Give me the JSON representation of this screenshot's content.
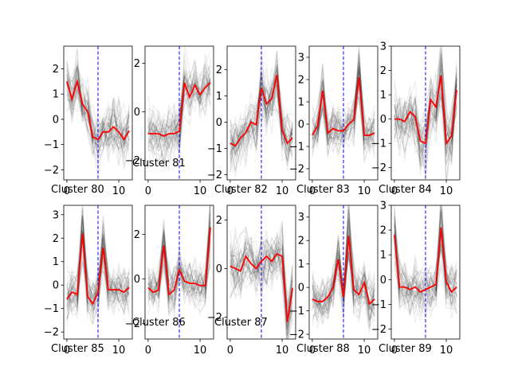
{
  "chart_data": [
    {
      "type": "line",
      "label": "Cluster 80",
      "ylim": [
        -2.4,
        2.9
      ],
      "yticks": [
        -2,
        -1,
        0,
        1,
        2
      ],
      "xlim": [
        -0.6,
        12.6
      ],
      "xticks": [
        0,
        10
      ],
      "vline_x": 6,
      "x": [
        0,
        1,
        2,
        3,
        4,
        5,
        6,
        7,
        8,
        9,
        10,
        11,
        12
      ],
      "mean": [
        1.5,
        0.8,
        1.5,
        0.6,
        0.3,
        -0.7,
        -0.8,
        -0.5,
        -0.5,
        -0.3,
        -0.5,
        -0.8,
        -0.45
      ],
      "background_spread": 0.5
    },
    {
      "type": "line",
      "label": "Cluster 81",
      "ylim": [
        -2.8,
        2.7
      ],
      "yticks": [
        -2,
        0,
        2
      ],
      "xlim": [
        -0.6,
        12.6
      ],
      "xticks": [
        0,
        10
      ],
      "vline_x": 6,
      "x": [
        0,
        1,
        2,
        3,
        4,
        5,
        6,
        7,
        8,
        9,
        10,
        11,
        12
      ],
      "mean": [
        -0.9,
        -0.9,
        -0.9,
        -1.0,
        -0.9,
        -0.9,
        -0.8,
        1.2,
        0.6,
        1.1,
        0.7,
        1.0,
        1.2
      ],
      "background_spread": 0.5
    },
    {
      "type": "line",
      "label": "Cluster 82",
      "ylim": [
        -2.2,
        2.9
      ],
      "yticks": [
        -2,
        -1,
        0,
        1,
        2
      ],
      "xlim": [
        -0.6,
        12.6
      ],
      "xticks": [
        0,
        10
      ],
      "vline_x": 6,
      "x": [
        0,
        1,
        2,
        3,
        4,
        5,
        6,
        7,
        8,
        9,
        10,
        11,
        12
      ],
      "mean": [
        -0.8,
        -0.9,
        -0.6,
        -0.4,
        0.0,
        -0.1,
        1.3,
        0.7,
        0.9,
        1.8,
        -0.3,
        -0.8,
        -0.6
      ],
      "background_spread": 0.5
    },
    {
      "type": "line",
      "label": "Cluster 83",
      "ylim": [
        -2.5,
        3.5
      ],
      "yticks": [
        -2,
        -1,
        0,
        1,
        2,
        3
      ],
      "xlim": [
        -0.6,
        12.6
      ],
      "xticks": [
        0,
        10
      ],
      "vline_x": 6,
      "x": [
        0,
        1,
        2,
        3,
        4,
        5,
        6,
        7,
        8,
        9,
        10,
        11,
        12
      ],
      "mean": [
        -0.5,
        -0.1,
        1.5,
        -0.4,
        -0.2,
        -0.3,
        -0.3,
        0.0,
        0.2,
        2.1,
        -0.5,
        -0.5,
        -0.4
      ],
      "background_spread": 0.5
    },
    {
      "type": "line",
      "label": "Cluster 84",
      "ylim": [
        -2.5,
        3.0
      ],
      "yticks": [
        -2,
        -1,
        0,
        1,
        2,
        3
      ],
      "xlim": [
        -0.6,
        12.6
      ],
      "xticks": [
        0,
        10
      ],
      "vline_x": 6,
      "x": [
        0,
        1,
        2,
        3,
        4,
        5,
        6,
        7,
        8,
        9,
        10,
        11,
        12
      ],
      "mean": [
        0.0,
        0.0,
        -0.1,
        0.3,
        0.1,
        -0.9,
        -1.0,
        0.8,
        0.5,
        1.8,
        -1.0,
        -0.7,
        1.2
      ],
      "background_spread": 0.6
    },
    {
      "type": "line",
      "label": "Cluster 85",
      "ylim": [
        -2.3,
        3.4
      ],
      "yticks": [
        -2,
        -1,
        0,
        1,
        2,
        3
      ],
      "xlim": [
        -0.6,
        12.6
      ],
      "xticks": [
        0,
        10
      ],
      "vline_x": 6,
      "x": [
        0,
        1,
        2,
        3,
        4,
        5,
        6,
        7,
        8,
        9,
        10,
        11,
        12
      ],
      "mean": [
        -0.6,
        -0.3,
        -0.4,
        2.2,
        -0.5,
        -0.8,
        -0.3,
        1.6,
        -0.2,
        -0.2,
        -0.2,
        -0.3,
        -0.1
      ],
      "background_spread": 0.5
    },
    {
      "type": "line",
      "label": "Cluster 86",
      "ylim": [
        -2.7,
        3.3
      ],
      "yticks": [
        -2,
        0,
        2
      ],
      "xlim": [
        -0.6,
        12.6
      ],
      "xticks": [
        0,
        10
      ],
      "vline_x": 6,
      "x": [
        0,
        1,
        2,
        3,
        4,
        5,
        6,
        7,
        8,
        9,
        10,
        11,
        12
      ],
      "mean": [
        -0.4,
        -0.6,
        -0.5,
        1.5,
        -0.7,
        -0.5,
        0.4,
        -0.1,
        -0.2,
        -0.2,
        -0.3,
        -0.3,
        2.3
      ],
      "background_spread": 0.5
    },
    {
      "type": "line",
      "label": "Cluster 87",
      "ylim": [
        -2.9,
        2.6
      ],
      "yticks": [
        -2,
        0,
        2
      ],
      "xlim": [
        -0.6,
        12.6
      ],
      "xticks": [
        0,
        10
      ],
      "vline_x": 6,
      "x": [
        0,
        1,
        2,
        3,
        4,
        5,
        6,
        7,
        8,
        9,
        10,
        11,
        12
      ],
      "mean": [
        0.1,
        0.0,
        -0.1,
        0.5,
        0.2,
        0.0,
        0.3,
        0.5,
        0.3,
        0.6,
        0.5,
        -2.2,
        -0.8
      ],
      "background_spread": 0.6
    },
    {
      "type": "line",
      "label": "Cluster 88",
      "ylim": [
        -2.2,
        3.5
      ],
      "yticks": [
        -2,
        -1,
        0,
        1,
        2,
        3
      ],
      "xlim": [
        -0.6,
        12.6
      ],
      "xticks": [
        0,
        10
      ],
      "vline_x": 6,
      "x": [
        0,
        1,
        2,
        3,
        4,
        5,
        6,
        7,
        8,
        9,
        10,
        11,
        12
      ],
      "mean": [
        -0.5,
        -0.6,
        -0.6,
        -0.4,
        0.0,
        1.2,
        -0.4,
        2.2,
        -0.1,
        -0.3,
        0.2,
        -0.7,
        -0.5
      ],
      "background_spread": 0.5
    },
    {
      "type": "line",
      "label": "Cluster 89",
      "ylim": [
        -2.4,
        3.0
      ],
      "yticks": [
        -2,
        -1,
        0,
        1,
        2,
        3
      ],
      "xlim": [
        -0.6,
        12.6
      ],
      "xticks": [
        0,
        10
      ],
      "vline_x": 6,
      "x": [
        0,
        1,
        2,
        3,
        4,
        5,
        6,
        7,
        8,
        9,
        10,
        11,
        12
      ],
      "mean": [
        1.8,
        -0.3,
        -0.3,
        -0.4,
        -0.3,
        -0.5,
        -0.4,
        -0.3,
        -0.2,
        2.1,
        -0.1,
        -0.5,
        -0.3
      ],
      "background_spread": 0.5
    }
  ],
  "colors": {
    "mean_line": "#ff0000",
    "background_lines": "#000000",
    "vline": "#0000ff",
    "axes": "#000000"
  }
}
